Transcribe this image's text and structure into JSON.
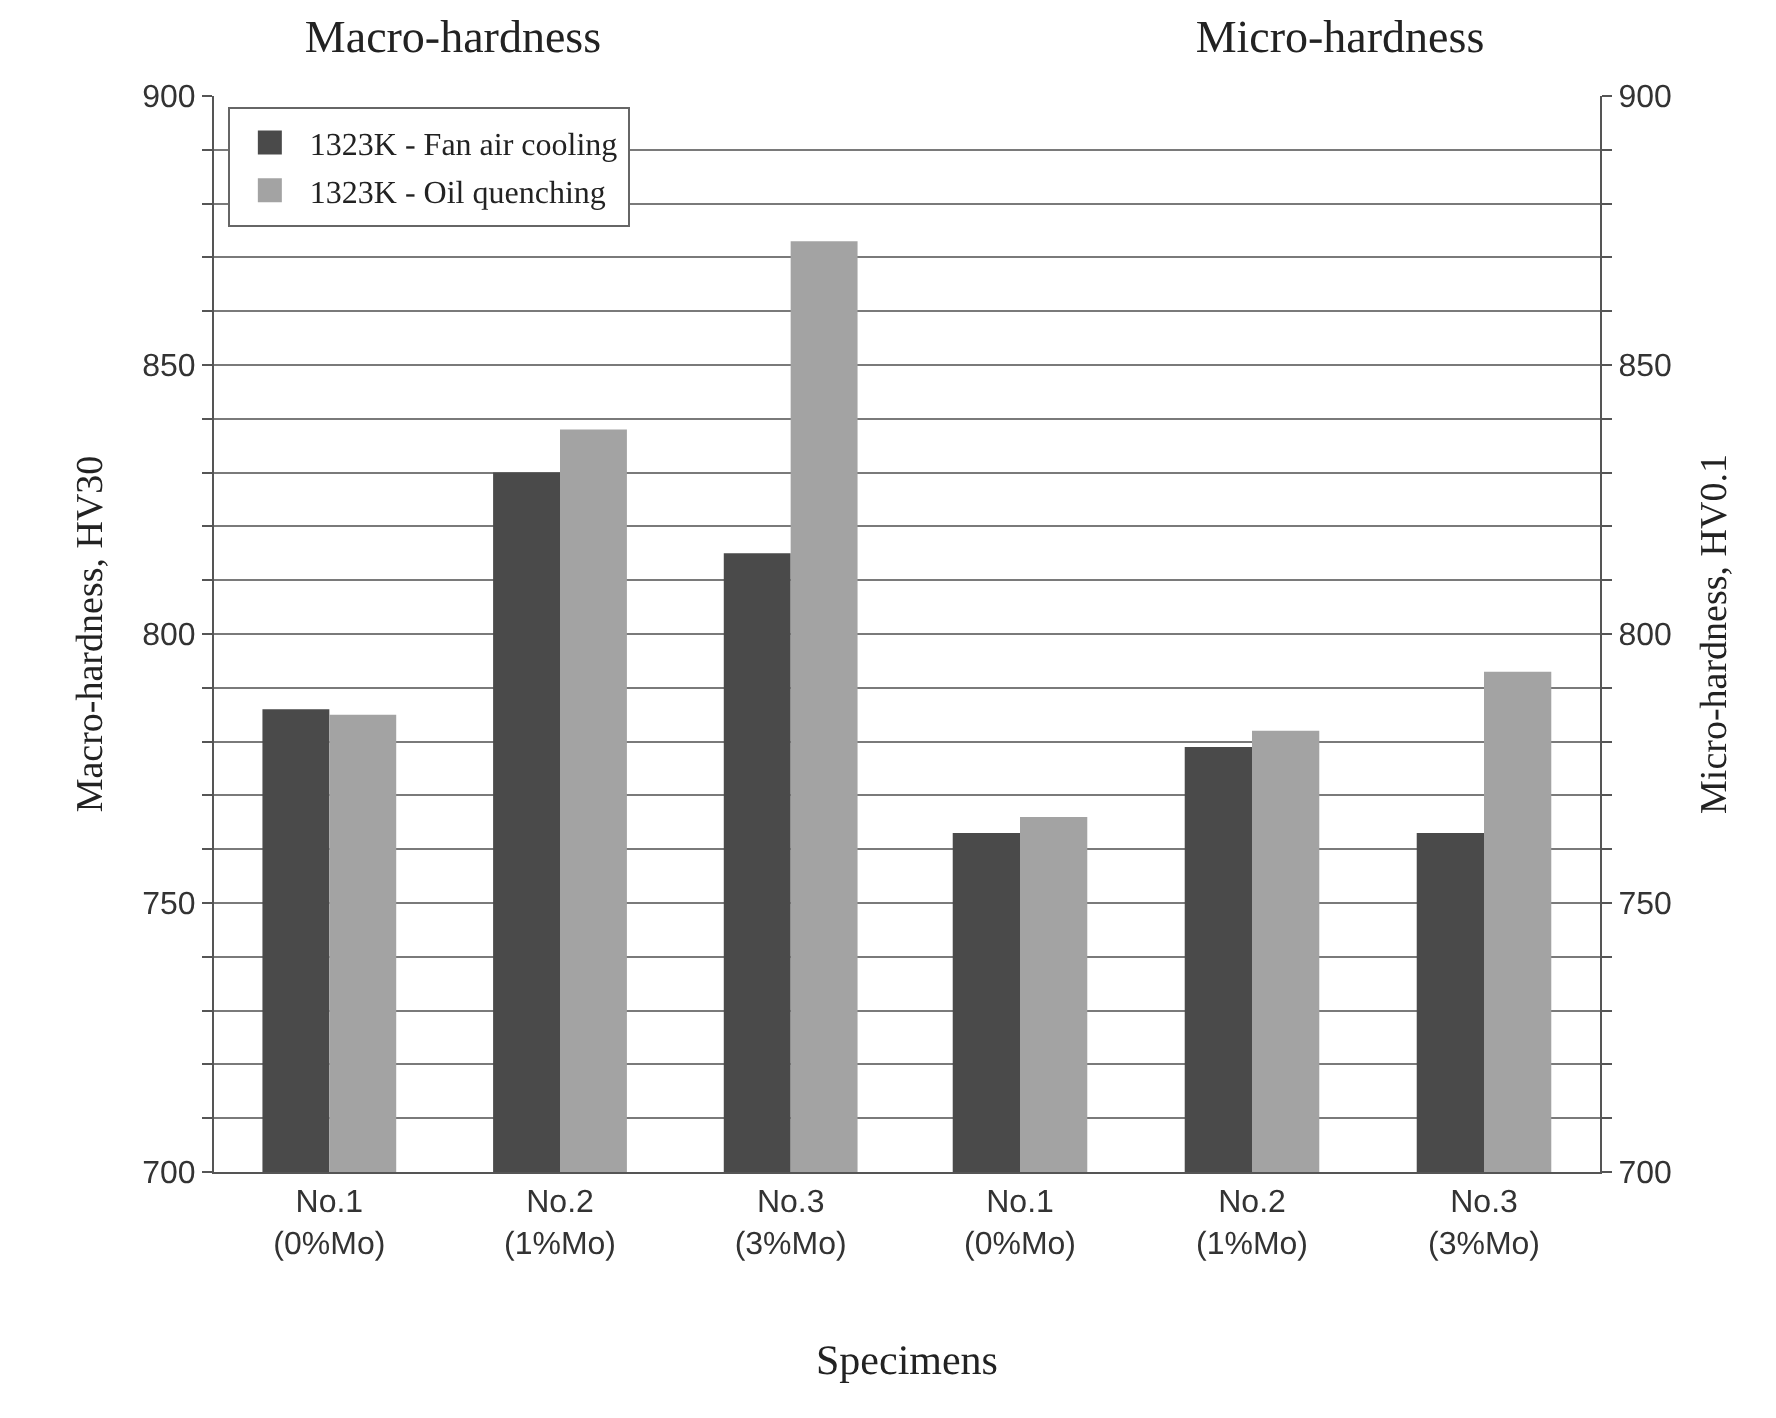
{
  "chart_data": [
    {
      "type": "bar",
      "title": "Macro-hardness",
      "xlabel": "Specimens",
      "ylabel": "Macro-hardness, HV30",
      "categories": [
        "No.1\n(0%Mo)",
        "No.2\n(1%Mo)",
        "No.3\n(3%Mo)"
      ],
      "series": [
        {
          "name": "1323K - Fan air cooling",
          "color": "#4a4a4a",
          "values": [
            786,
            830,
            815
          ]
        },
        {
          "name": "1323K - Oil quenching",
          "color": "#a3a3a3",
          "values": [
            785,
            838,
            873
          ]
        }
      ],
      "ylim": [
        700,
        900
      ],
      "yticks": [
        700,
        {
          "value": 710,
          "label": null
        },
        {
          "value": 720,
          "label": null
        },
        {
          "value": 730,
          "label": null
        },
        {
          "value": 740,
          "label": null
        },
        750,
        {
          "value": 760,
          "label": null
        },
        {
          "value": 770,
          "label": null
        },
        {
          "value": 780,
          "label": null
        },
        {
          "value": 790,
          "label": null
        },
        800,
        {
          "value": 810,
          "label": null
        },
        {
          "value": 820,
          "label": null
        },
        {
          "value": 830,
          "label": null
        },
        {
          "value": 840,
          "label": null
        },
        850,
        {
          "value": 860,
          "label": null
        },
        {
          "value": 870,
          "label": null
        },
        {
          "value": 880,
          "label": null
        },
        {
          "value": 890,
          "label": null
        },
        900
      ],
      "grid": "y",
      "legend": "top left"
    },
    {
      "type": "bar",
      "title": "Micro-hardness",
      "y2label": "Micro-hardness, HV0.1",
      "categories": [
        "No.1\n(0%Mo)",
        "No.2\n(1%Mo)",
        "No.3\n(3%Mo)"
      ],
      "series": [
        {
          "color": "#4a4a4a",
          "values": [
            763,
            779,
            763
          ],
          "axis": "y2"
        },
        {
          "color": "#a3a3a3",
          "values": [
            766,
            782,
            793
          ],
          "axis": "y2"
        }
      ],
      "y2lim": [
        700,
        900
      ],
      "y2ticks": [
        700,
        {
          "value": 710,
          "label": null
        },
        {
          "value": 720,
          "label": null
        },
        {
          "value": 730,
          "label": null
        },
        {
          "value": 740,
          "label": null
        },
        750,
        {
          "value": 760,
          "label": null
        },
        {
          "value": 770,
          "label": null
        },
        {
          "value": 780,
          "label": null
        },
        {
          "value": 790,
          "label": null
        },
        800,
        {
          "value": 810,
          "label": null
        },
        {
          "value": 820,
          "label": null
        },
        {
          "value": 830,
          "label": null
        },
        {
          "value": 840,
          "label": null
        },
        850,
        {
          "value": 860,
          "label": null
        },
        {
          "value": 870,
          "label": null
        },
        {
          "value": 880,
          "label": null
        },
        {
          "value": 890,
          "label": null
        },
        900
      ],
      "grid": "y"
    }
  ]
}
